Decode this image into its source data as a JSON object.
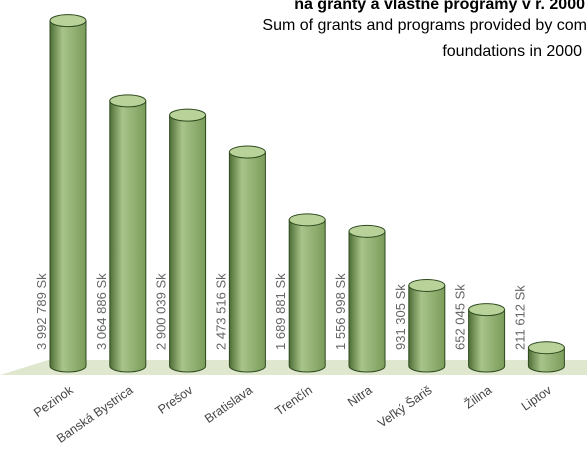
{
  "chart_data": {
    "type": "bar",
    "title": "na granty a vlastné programy v r. 2000",
    "subtitle_lines": [
      "Sum of grants and programs provided by com",
      "foundations in 2000"
    ],
    "categories": [
      "Pezinok",
      "Banská Bystrica",
      "Prešov",
      "Bratislava",
      "Trenčín",
      "Nitra",
      "Veľký Šariš",
      "Žilina",
      "Liptov"
    ],
    "values": [
      3992789,
      3064886,
      2900039,
      2473516,
      1689881,
      1556998,
      931305,
      652045,
      211612
    ],
    "value_labels": [
      "3 992 789 Sk",
      "3 064 886 Sk",
      "2 900 039 Sk",
      "2 473 516 Sk",
      "1 689 881 Sk",
      "1 556 998 Sk",
      "931 305 Sk",
      "652 045 Sk",
      "211 612 Sk"
    ],
    "xlabel": "",
    "ylabel": "",
    "ylim": [
      0,
      4000000
    ],
    "grid": false,
    "bar_style": "3d-cylinder",
    "colors": {
      "bar_light": "#a9c48a",
      "bar_mid": "#7a9c5a",
      "bar_dark": "#4e6e36",
      "bar_top": "#b8d29a",
      "outline": "#2f4a1f",
      "floor": "#dfe8cf"
    }
  }
}
